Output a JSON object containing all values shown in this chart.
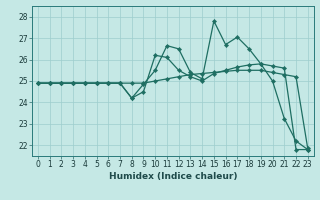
{
  "title": "",
  "xlabel": "Humidex (Indice chaleur)",
  "bg_color": "#c5e8e5",
  "grid_color": "#9ecece",
  "line_color": "#1e6e62",
  "xlim": [
    -0.5,
    23.5
  ],
  "ylim": [
    21.5,
    28.5
  ],
  "yticks": [
    22,
    23,
    24,
    25,
    26,
    27,
    28
  ],
  "xticks": [
    0,
    1,
    2,
    3,
    4,
    5,
    6,
    7,
    8,
    9,
    10,
    11,
    12,
    13,
    14,
    15,
    16,
    17,
    18,
    19,
    20,
    21,
    22,
    23
  ],
  "series": [
    {
      "y": [
        24.9,
        24.9,
        24.9,
        24.9,
        24.9,
        24.9,
        24.9,
        24.9,
        24.2,
        24.85,
        25.5,
        26.65,
        26.5,
        25.4,
        25.1,
        27.8,
        26.7,
        27.05,
        26.5,
        25.8,
        25.0,
        23.25,
        22.2,
        21.8
      ]
    },
    {
      "y": [
        24.9,
        24.9,
        24.9,
        24.9,
        24.9,
        24.9,
        24.9,
        24.9,
        24.9,
        24.9,
        25.0,
        25.1,
        25.2,
        25.3,
        25.35,
        25.4,
        25.45,
        25.5,
        25.5,
        25.5,
        25.4,
        25.3,
        25.2,
        21.85
      ]
    },
    {
      "y": [
        24.9,
        24.9,
        24.9,
        24.9,
        24.9,
        24.9,
        24.9,
        24.9,
        24.2,
        24.5,
        26.2,
        26.1,
        25.5,
        25.2,
        25.0,
        25.35,
        25.5,
        25.65,
        25.75,
        25.8,
        25.7,
        25.6,
        21.8,
        21.8
      ]
    }
  ],
  "marker": "D",
  "markersize": 2.2,
  "linewidth": 0.9,
  "tick_fontsize": 5.5,
  "xlabel_fontsize": 6.5
}
